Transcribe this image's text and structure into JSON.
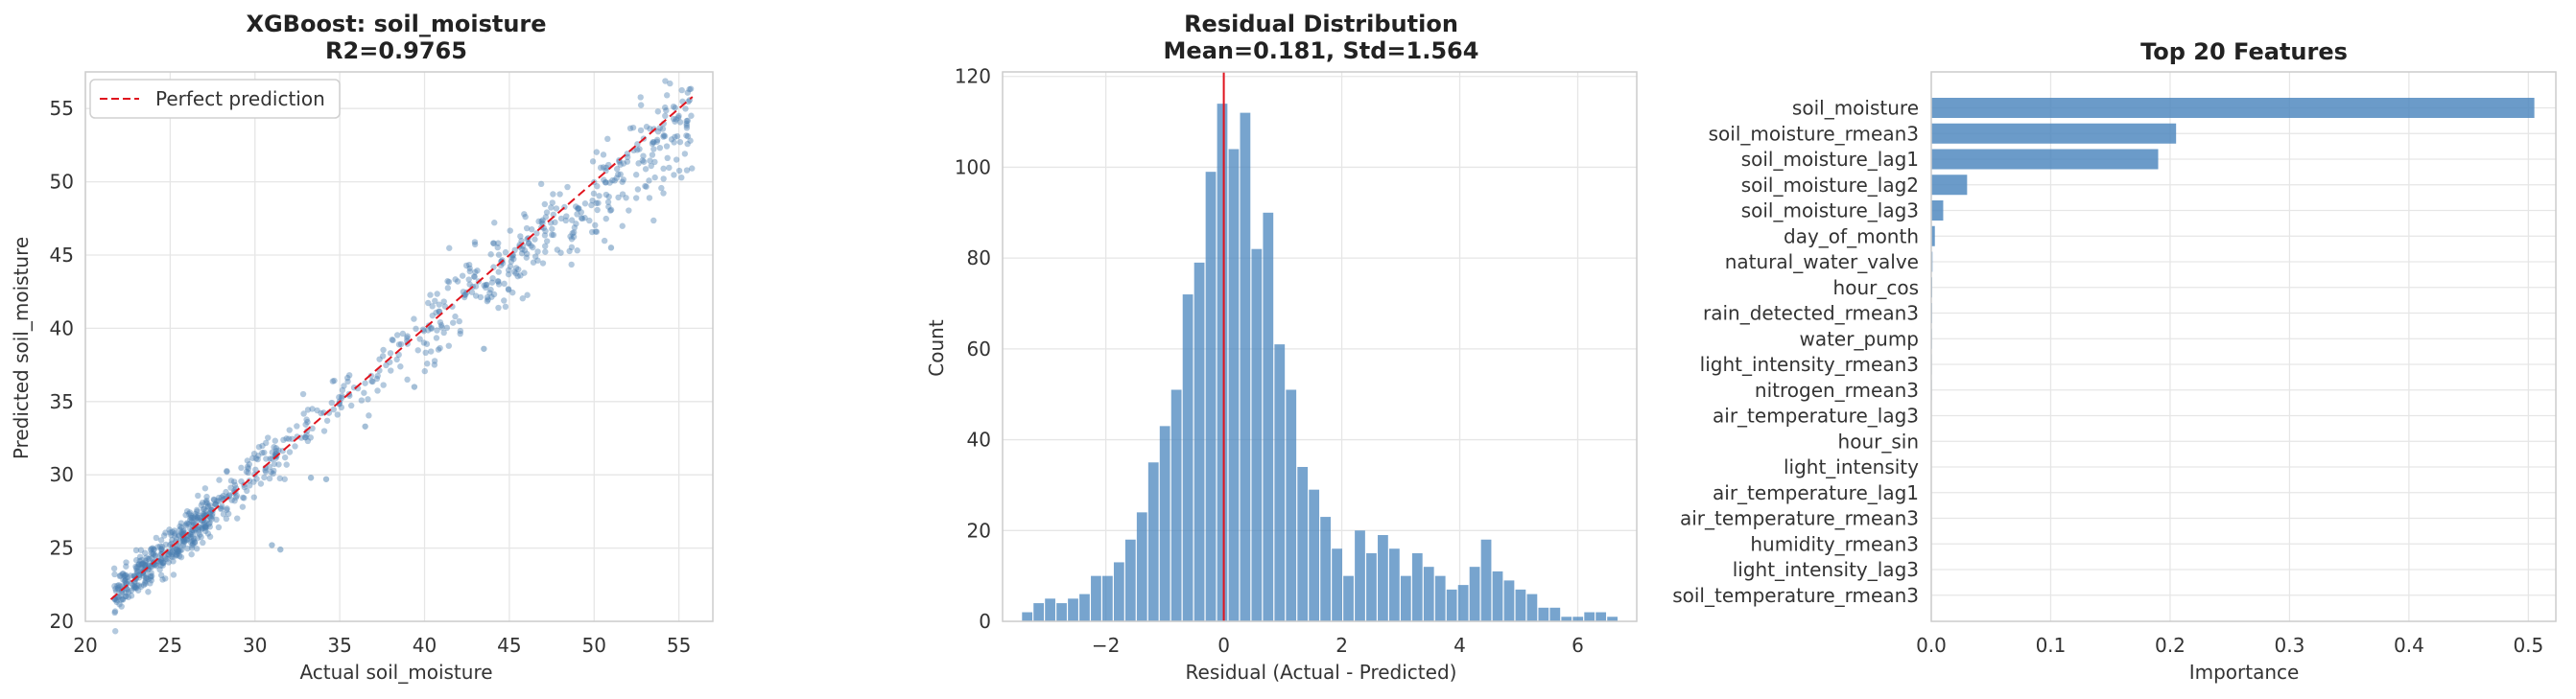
{
  "colors": {
    "point": "#4a7fb0",
    "bar": "#4a85bd",
    "reference_line": "#e0141e",
    "grid": "#e6e6e6",
    "axes_border": "#cccccc"
  },
  "chart_data": [
    {
      "type": "scatter",
      "title": "XGBoost: soil_moisture",
      "subtitle": "R2=0.9765",
      "xlabel": "Actual soil_moisture",
      "ylabel": "Predicted soil_moisture",
      "xlim": [
        20,
        57
      ],
      "ylim": [
        20,
        57.5
      ],
      "xticks": [
        20,
        25,
        30,
        35,
        40,
        45,
        50,
        55
      ],
      "yticks": [
        20,
        25,
        30,
        35,
        40,
        45,
        50,
        55
      ],
      "legend": {
        "position": "top-left",
        "entries": [
          "Perfect prediction"
        ]
      },
      "reference_line": {
        "x": [
          21.5,
          55.8
        ],
        "y": [
          21.5,
          55.8
        ],
        "style": "dashed"
      },
      "clusters": [
        {
          "x_range": [
            21.7,
            27.5
          ],
          "y_center_offset": 0.0,
          "spread": 0.7,
          "count": 360
        },
        {
          "x_range": [
            27.5,
            32.0
          ],
          "y_center_offset": 0.0,
          "spread": 0.8,
          "count": 110
        },
        {
          "x_range": [
            32.0,
            40.0
          ],
          "y_center_offset": -0.1,
          "spread": 0.9,
          "count": 90
        },
        {
          "x_range": [
            40.0,
            48.0
          ],
          "y_center_offset": -0.4,
          "spread": 1.4,
          "count": 180
        },
        {
          "x_range": [
            48.0,
            55.8
          ],
          "y_center_offset": -1.3,
          "spread": 1.7,
          "count": 180
        }
      ],
      "outliers": [
        [
          31.0,
          25.2
        ],
        [
          31.5,
          24.9
        ],
        [
          33.3,
          29.8
        ],
        [
          34.2,
          29.7
        ],
        [
          36.5,
          33.3
        ],
        [
          39.4,
          36.0
        ],
        [
          43.5,
          38.6
        ],
        [
          51.0,
          45.5
        ]
      ],
      "grid": true
    },
    {
      "type": "histogram",
      "title": "Residual Distribution",
      "subtitle": "Mean=0.181, Std=1.564",
      "xlabel": "Residual (Actual - Predicted)",
      "ylabel": "Count",
      "xlim": [
        -3.75,
        7.0
      ],
      "ylim": [
        0,
        121
      ],
      "xticks": [
        -2,
        0,
        2,
        4,
        6
      ],
      "yticks": [
        0,
        20,
        40,
        60,
        80,
        100,
        120
      ],
      "bin_start": -3.42,
      "bin_width": 0.1945,
      "counts": [
        2,
        4,
        5,
        4,
        5,
        6,
        10,
        10,
        13,
        18,
        24,
        35,
        43,
        51,
        72,
        79,
        99,
        114,
        104,
        112,
        82,
        90,
        61,
        51,
        34,
        29,
        23,
        16,
        10,
        20,
        15,
        19,
        16,
        10,
        15,
        12,
        10,
        7,
        8,
        12,
        18,
        11,
        9,
        7,
        6,
        3,
        3,
        1,
        1,
        2,
        2,
        1
      ],
      "vline": 0,
      "grid": true
    },
    {
      "type": "bar",
      "orientation": "horizontal",
      "title": "Top 20 Features",
      "xlabel": "Importance",
      "xlim": [
        0,
        0.523
      ],
      "xticks": [
        0.0,
        0.1,
        0.2,
        0.3,
        0.4,
        0.5
      ],
      "categories": [
        "soil_moisture",
        "soil_moisture_rmean3",
        "soil_moisture_lag1",
        "soil_moisture_lag2",
        "soil_moisture_lag3",
        "day_of_month",
        "natural_water_valve",
        "hour_cos",
        "rain_detected_rmean3",
        "water_pump",
        "light_intensity_rmean3",
        "nitrogen_rmean3",
        "air_temperature_lag3",
        "hour_sin",
        "light_intensity",
        "air_temperature_lag1",
        "air_temperature_rmean3",
        "humidity_rmean3",
        "light_intensity_lag3",
        "soil_temperature_rmean3"
      ],
      "values": [
        0.505,
        0.205,
        0.19,
        0.03,
        0.01,
        0.003,
        0.001,
        0.0008,
        0.0007,
        0.0006,
        0.0005,
        0.0005,
        0.0004,
        0.0004,
        0.0003,
        0.0003,
        0.0003,
        0.0002,
        0.0002,
        0.0002
      ],
      "grid": true
    }
  ]
}
